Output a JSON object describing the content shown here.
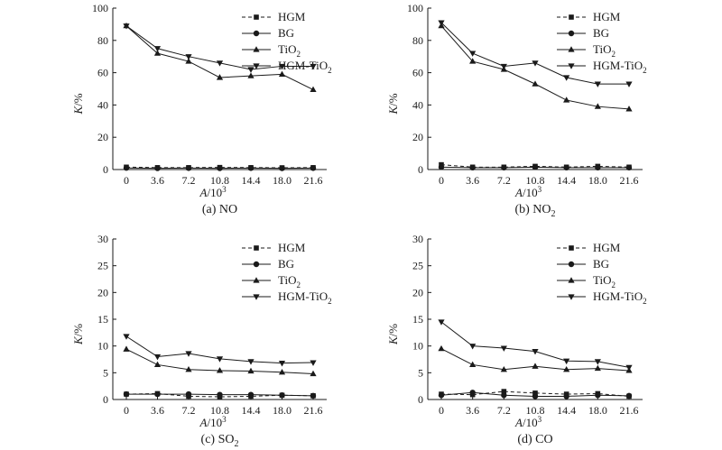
{
  "figure": {
    "x_label_prefix": "A",
    "x_label_suffix": "/10",
    "x_label_exp": "3",
    "y_label_prefix": "K",
    "y_label_suffix": "/%"
  },
  "chart_data": [
    {
      "type": "line",
      "caption": "(a) NO",
      "caption_main": "(a) NO",
      "caption_sub": "",
      "categories": [
        "0",
        "3.6",
        "7.2",
        "10.8",
        "14.4",
        "18.0",
        "21.6"
      ],
      "ylim": [
        0,
        100
      ],
      "yticks": [
        "0",
        "20",
        "40",
        "60",
        "80",
        "100"
      ],
      "series": [
        {
          "name": "HGM",
          "label_main": "HGM",
          "label_sub": "",
          "marker": "square",
          "dash": "dashed",
          "values": [
            1.5,
            1.2,
            1.2,
            1.3,
            1.2,
            1.1,
            1.2
          ]
        },
        {
          "name": "BG",
          "label_main": "BG",
          "label_sub": "",
          "marker": "circle",
          "dash": "solid",
          "values": [
            1.0,
            0.8,
            0.9,
            0.8,
            0.9,
            0.8,
            0.9
          ]
        },
        {
          "name": "TiO2",
          "label_main": "TiO",
          "label_sub": "2",
          "marker": "triangle-up",
          "dash": "solid",
          "values": [
            89,
            72,
            67,
            57,
            58,
            59,
            49.5
          ]
        },
        {
          "name": "HGM-TiO2",
          "label_main": "HGM-TiO",
          "label_sub": "2",
          "marker": "triangle-down",
          "dash": "solid",
          "values": [
            89,
            75,
            70,
            66,
            62,
            64,
            64
          ]
        }
      ]
    },
    {
      "type": "line",
      "caption": "(b) NO2",
      "caption_main": "(b) NO",
      "caption_sub": "2",
      "categories": [
        "0",
        "3.6",
        "7.2",
        "10.8",
        "14.4",
        "18.0",
        "21.6"
      ],
      "ylim": [
        0,
        100
      ],
      "yticks": [
        "0",
        "20",
        "40",
        "60",
        "80",
        "100"
      ],
      "series": [
        {
          "name": "HGM",
          "label_main": "HGM",
          "label_sub": "",
          "marker": "square",
          "dash": "dashed",
          "values": [
            3,
            1.5,
            1.5,
            2,
            1.5,
            2,
            1.5
          ]
        },
        {
          "name": "BG",
          "label_main": "BG",
          "label_sub": "",
          "marker": "circle",
          "dash": "solid",
          "values": [
            1.5,
            1.2,
            1.2,
            1.5,
            1.2,
            1.2,
            1.2
          ]
        },
        {
          "name": "TiO2",
          "label_main": "TiO",
          "label_sub": "2",
          "marker": "triangle-up",
          "dash": "solid",
          "values": [
            89,
            67,
            62,
            53,
            43,
            39,
            37.5
          ]
        },
        {
          "name": "HGM-TiO2",
          "label_main": "HGM-TiO",
          "label_sub": "2",
          "marker": "triangle-down",
          "dash": "solid",
          "values": [
            91,
            72,
            64,
            66,
            57,
            53,
            53
          ]
        }
      ]
    },
    {
      "type": "line",
      "caption": "(c) SO2",
      "caption_main": "(c) SO",
      "caption_sub": "2",
      "categories": [
        "0",
        "3.6",
        "7.2",
        "10.8",
        "14.4",
        "18.0",
        "21.6"
      ],
      "ylim": [
        0,
        30
      ],
      "yticks": [
        "0",
        "5",
        "10",
        "15",
        "20",
        "25",
        "30"
      ],
      "series": [
        {
          "name": "HGM",
          "label_main": "HGM",
          "label_sub": "",
          "marker": "square",
          "dash": "dashed",
          "values": [
            1.0,
            1.1,
            0.6,
            0.5,
            0.6,
            0.8,
            0.7
          ]
        },
        {
          "name": "BG",
          "label_main": "BG",
          "label_sub": "",
          "marker": "circle",
          "dash": "solid",
          "values": [
            1.0,
            1.0,
            1.0,
            0.9,
            0.9,
            0.8,
            0.7
          ]
        },
        {
          "name": "TiO2",
          "label_main": "TiO",
          "label_sub": "2",
          "marker": "triangle-up",
          "dash": "solid",
          "values": [
            9.4,
            6.5,
            5.6,
            5.4,
            5.3,
            5.1,
            4.8
          ]
        },
        {
          "name": "HGM-TiO2",
          "label_main": "HGM-TiO",
          "label_sub": "2",
          "marker": "triangle-down",
          "dash": "solid",
          "values": [
            11.8,
            8.0,
            8.6,
            7.6,
            7.1,
            6.8,
            6.9
          ]
        }
      ]
    },
    {
      "type": "line",
      "caption": "(d) CO",
      "caption_main": "(d) CO",
      "caption_sub": "",
      "categories": [
        "0",
        "3.6",
        "7.2",
        "10.8",
        "14.4",
        "18.0",
        "21.6"
      ],
      "ylim": [
        0,
        30
      ],
      "yticks": [
        "0",
        "5",
        "10",
        "15",
        "20",
        "25",
        "30"
      ],
      "series": [
        {
          "name": "HGM",
          "label_main": "HGM",
          "label_sub": "",
          "marker": "square",
          "dash": "dashed",
          "values": [
            1.0,
            0.9,
            1.5,
            1.2,
            1.0,
            1.1,
            0.6
          ]
        },
        {
          "name": "BG",
          "label_main": "BG",
          "label_sub": "",
          "marker": "circle",
          "dash": "solid",
          "values": [
            0.8,
            1.3,
            0.8,
            0.6,
            0.6,
            0.8,
            0.7
          ]
        },
        {
          "name": "TiO2",
          "label_main": "TiO",
          "label_sub": "2",
          "marker": "triangle-up",
          "dash": "solid",
          "values": [
            9.5,
            6.5,
            5.6,
            6.2,
            5.6,
            5.8,
            5.4
          ]
        },
        {
          "name": "HGM-TiO2",
          "label_main": "HGM-TiO",
          "label_sub": "2",
          "marker": "triangle-down",
          "dash": "solid",
          "values": [
            14.5,
            10.0,
            9.6,
            9.0,
            7.2,
            7.1,
            6.0
          ]
        }
      ]
    }
  ]
}
